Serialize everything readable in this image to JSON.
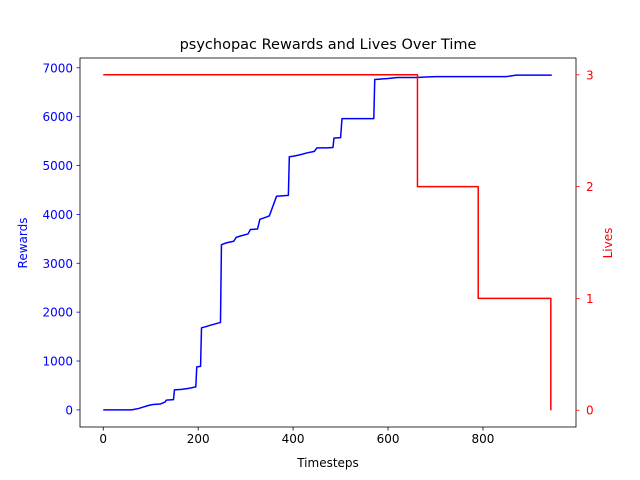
{
  "chart_data": {
    "type": "line",
    "title": "psychopac Rewards and Lives Over Time",
    "xlabel": "Timesteps",
    "xlim": [
      -49,
      996
    ],
    "x_ticks": [
      0,
      200,
      400,
      600,
      800
    ],
    "grid": false,
    "legend": "none",
    "axes": {
      "left": {
        "label": "Rewards",
        "color": "#0000ff",
        "ylim": [
          -350,
          7200
        ],
        "ticks": [
          0,
          1000,
          2000,
          3000,
          4000,
          5000,
          6000,
          7000
        ]
      },
      "right": {
        "label": "Lives",
        "color": "#ff0000",
        "ylim": [
          -0.15,
          3.15
        ],
        "ticks": [
          0,
          1,
          2,
          3
        ]
      }
    },
    "series": [
      {
        "axis": "left",
        "color": "#0000ff",
        "x": [
          0,
          60,
          65,
          75,
          85,
          95,
          105,
          120,
          130,
          133,
          148,
          150,
          165,
          180,
          195,
          197,
          205,
          207,
          215,
          225,
          247,
          249,
          260,
          275,
          280,
          290,
          305,
          310,
          325,
          330,
          345,
          350,
          365,
          390,
          392,
          400,
          415,
          430,
          445,
          450,
          470,
          484,
          486,
          500,
          503,
          520,
          540,
          570,
          572,
          600,
          620,
          640,
          660,
          680,
          700,
          750,
          800,
          850,
          870,
          945
        ],
        "y": [
          0,
          0,
          10,
          30,
          60,
          90,
          110,
          120,
          160,
          200,
          210,
          410,
          420,
          440,
          470,
          880,
          890,
          1680,
          1700,
          1730,
          1790,
          3380,
          3420,
          3450,
          3530,
          3560,
          3600,
          3690,
          3700,
          3900,
          3950,
          3970,
          4370,
          4390,
          5180,
          5190,
          5220,
          5260,
          5290,
          5360,
          5360,
          5370,
          5560,
          5570,
          5960,
          5960,
          5960,
          5960,
          6760,
          6780,
          6800,
          6800,
          6800,
          6810,
          6820,
          6820,
          6820,
          6820,
          6850,
          6850
        ]
      },
      {
        "axis": "right",
        "color": "#ff0000",
        "x": [
          0,
          662,
          662,
          790,
          790,
          943,
          943
        ],
        "y": [
          3,
          3,
          2,
          2,
          1,
          1,
          0
        ]
      }
    ]
  }
}
